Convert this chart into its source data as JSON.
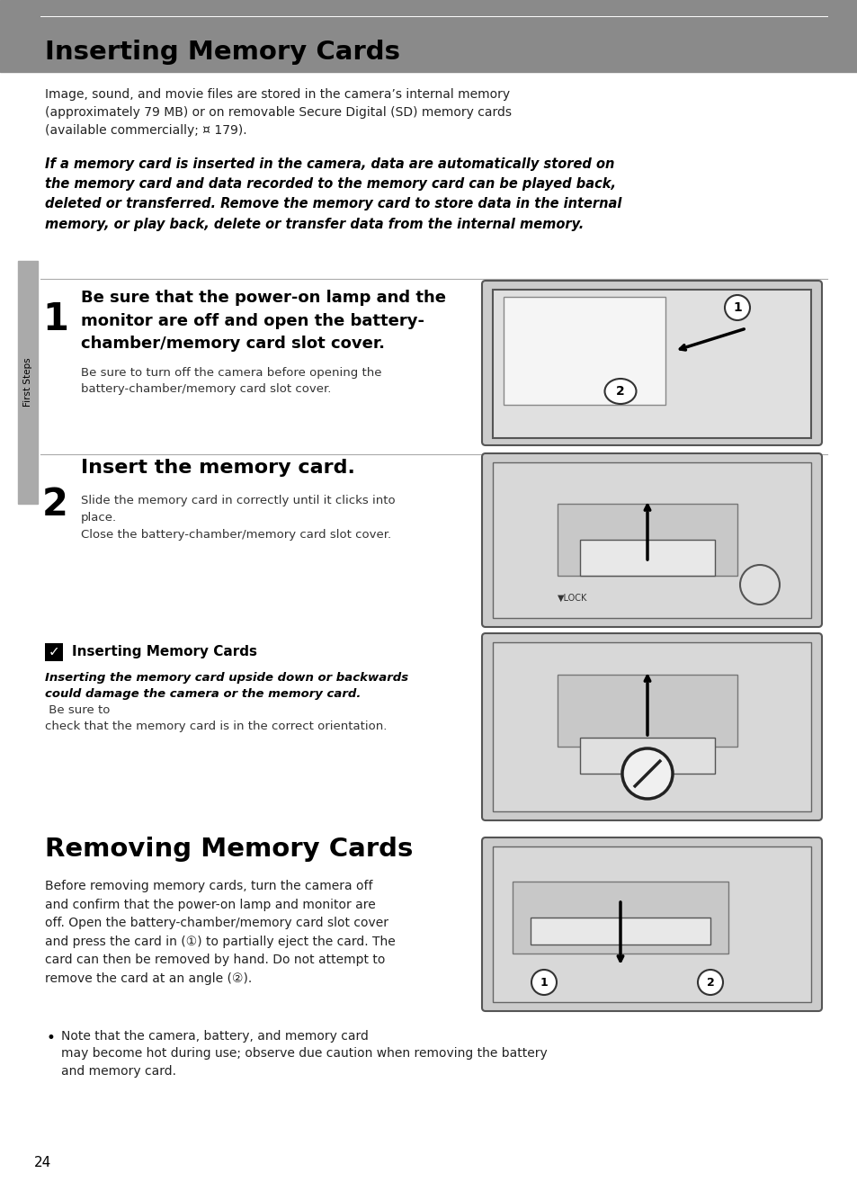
{
  "bg_color": "#ffffff",
  "header_bg": "#8a8a8a",
  "header_text": "Inserting Memory Cards",
  "page_number": "24",
  "intro_text": "Image, sound, and movie files are stored in the camera’s internal memory\n(approximately 79 MB) or on removable Secure Digital (SD) memory cards\n(available commercially; ¤ 179).",
  "bold_italic_text": "If a memory card is inserted in the camera, data are automatically stored on\nthe memory card and data recorded to the memory card can be played back,\ndeleted or transferred. Remove the memory card to store data in the internal\nmemory, or play back, delete or transfer data from the internal memory.",
  "step1_num": "1",
  "step1_title": "Be sure that the power-on lamp and the\nmonitor are off and open the battery-\nchamber/memory card slot cover.",
  "step1_sub": "Be sure to turn off the camera before opening the\nbattery-chamber/memory card slot cover.",
  "step2_num": "2",
  "step2_title": "Insert the memory card.",
  "step2_sub": "Slide the memory card in correctly until it clicks into\nplace.\nClose the battery-chamber/memory card slot cover.",
  "note_title": "Inserting Memory Cards",
  "note_bold_italic": "Inserting the memory card upside down or backwards\ncould damage the camera or the memory card.",
  "note_normal": " Be sure to\ncheck that the memory card is in the correct orientation.",
  "section2_title": "Removing Memory Cards",
  "section2_text": "Before removing memory cards, turn the camera off\nand confirm that the power-on lamp and monitor are\noff. Open the battery-chamber/memory card slot cover\nand press the card in (①) to partially eject the card. The\ncard can then be removed by hand. Do not attempt to\nremove the card at an angle (②).",
  "bullet_text": "Note that the camera, battery, and memory card\nmay become hot during use; observe due caution when removing the battery\nand memory card.",
  "sidebar_label": "First Steps",
  "img1_color": "#d0d0d0",
  "img2_color": "#d0d0d0",
  "img3_color": "#d0d0d0",
  "img4_color": "#d0d0d0"
}
